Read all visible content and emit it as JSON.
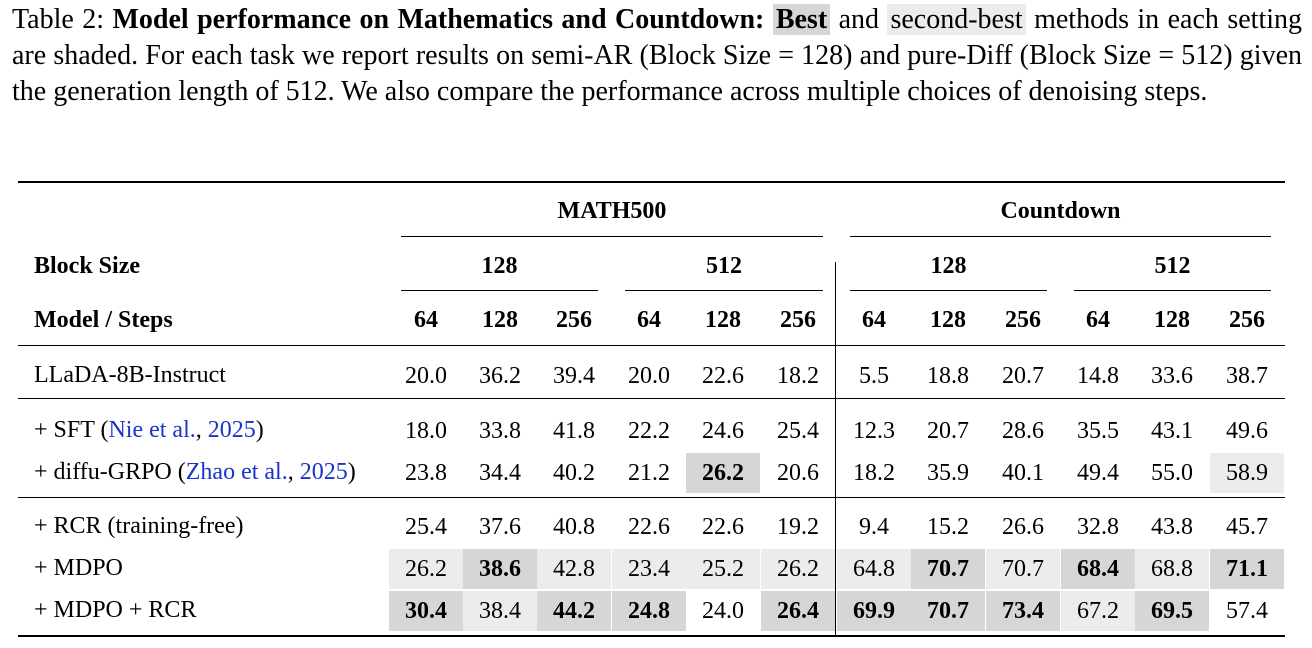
{
  "caption": {
    "prefix": "Table 2: ",
    "bold_title": "Model performance on Mathematics and Countdown: ",
    "best_label": "Best",
    "mid_text": " and ",
    "second_label": "second-best",
    "rest": " methods in each setting are shaded. For each task we report results on semi-AR (Block Size = 128) and pure-Diff (Block Size = 512) given the generation length of 512. We also compare the performance across multiple choices of denoising steps."
  },
  "header": {
    "tasks": [
      "MATH500",
      "Countdown"
    ],
    "block_size_label": "Block Size",
    "block_sizes": [
      "128",
      "512",
      "128",
      "512"
    ],
    "model_steps_label": "Model / Steps",
    "steps": [
      "64",
      "128",
      "256",
      "64",
      "128",
      "256",
      "64",
      "128",
      "256",
      "64",
      "128",
      "256"
    ]
  },
  "rows": [
    {
      "label": "LLaDA-8B-Instruct",
      "values": [
        "20.0",
        "36.2",
        "39.4",
        "20.0",
        "22.6",
        "18.2",
        "5.5",
        "18.8",
        "20.7",
        "14.8",
        "33.6",
        "38.7"
      ],
      "shade": [
        "",
        "",
        "",
        "",
        "",
        "",
        "",
        "",
        "",
        "",
        "",
        ""
      ]
    },
    {
      "label": "+ SFT (",
      "cite_author": "Nie et al.",
      "cite_sep": ", ",
      "cite_year": "2025",
      "label_end": ")",
      "values": [
        "18.0",
        "33.8",
        "41.8",
        "22.2",
        "24.6",
        "25.4",
        "12.3",
        "20.7",
        "28.6",
        "35.5",
        "43.1",
        "49.6"
      ],
      "shade": [
        "",
        "",
        "",
        "",
        "",
        "",
        "",
        "",
        "",
        "",
        "",
        ""
      ]
    },
    {
      "label": "+ diffu-GRPO (",
      "cite_author": "Zhao et al.",
      "cite_sep": ", ",
      "cite_year": "2025",
      "label_end": ")",
      "values": [
        "23.8",
        "34.4",
        "40.2",
        "21.2",
        "26.2",
        "20.6",
        "18.2",
        "35.9",
        "40.1",
        "49.4",
        "55.0",
        "58.9"
      ],
      "shade": [
        "",
        "",
        "",
        "",
        "best",
        "",
        "",
        "",
        "",
        "",
        "",
        "second"
      ]
    },
    {
      "label": "+ RCR (training-free)",
      "values": [
        "25.4",
        "37.6",
        "40.8",
        "22.6",
        "22.6",
        "19.2",
        "9.4",
        "15.2",
        "26.6",
        "32.8",
        "43.8",
        "45.7"
      ],
      "shade": [
        "",
        "",
        "",
        "",
        "",
        "",
        "",
        "",
        "",
        "",
        "",
        ""
      ]
    },
    {
      "label": "+ MDPO",
      "values": [
        "26.2",
        "38.6",
        "42.8",
        "23.4",
        "25.2",
        "26.2",
        "64.8",
        "70.7",
        "70.7",
        "68.4",
        "68.8",
        "71.1"
      ],
      "shade": [
        "second",
        "best",
        "second",
        "second",
        "second",
        "second",
        "second",
        "best",
        "second",
        "best",
        "second",
        "best"
      ]
    },
    {
      "label": "+ MDPO + RCR",
      "values": [
        "30.4",
        "38.4",
        "44.2",
        "24.8",
        "24.0",
        "26.4",
        "69.9",
        "70.7",
        "73.4",
        "67.2",
        "69.5",
        "57.4"
      ],
      "shade": [
        "best",
        "second",
        "best",
        "best",
        "",
        "best",
        "best",
        "best",
        "best",
        "second",
        "best",
        ""
      ]
    }
  ]
}
